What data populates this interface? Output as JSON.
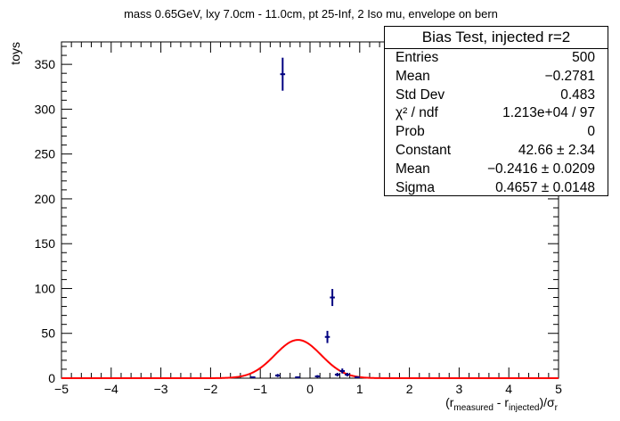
{
  "chart_data": {
    "type": "histogram",
    "title": "mass 0.65GeV, lxy 7.0cm - 11.0cm, pt 25-Inf, 2 Iso mu, envelope on bern",
    "ylabel": "toys",
    "xlabel": {
      "parts": [
        {
          "text": "(r",
          "sub": false
        },
        {
          "text": "measured",
          "sub": true
        },
        {
          "text": " - r",
          "sub": false
        },
        {
          "text": "injected",
          "sub": true
        },
        {
          "text": ")/σ",
          "sub": false
        },
        {
          "text": "r",
          "sub": true
        }
      ]
    },
    "xlim": [
      -5,
      5
    ],
    "ylim": [
      0,
      375
    ],
    "xticks": [
      -5,
      -4,
      -3,
      -2,
      -1,
      0,
      1,
      2,
      3,
      4,
      5
    ],
    "xtick_labels": [
      "−5",
      "−4",
      "−3",
      "−2",
      "−1",
      "0",
      "1",
      "2",
      "3",
      "4",
      "5"
    ],
    "yticks": [
      0,
      50,
      100,
      150,
      200,
      250,
      300,
      350
    ],
    "ytick_labels": [
      "0",
      "50",
      "100",
      "150",
      "200",
      "250",
      "300",
      "350"
    ],
    "bin_width": 0.1,
    "series": [
      {
        "kind": "data-points",
        "color": "#000080",
        "points": [
          {
            "x": -0.55,
            "y": 339,
            "err": 18.4
          },
          {
            "x": 0.35,
            "y": 46,
            "err": 6.8
          },
          {
            "x": 0.45,
            "y": 90,
            "err": 9.5
          },
          {
            "x": 0.65,
            "y": 8,
            "err": 2.8
          },
          {
            "x": -0.65,
            "y": 3,
            "err": 1.7
          },
          {
            "x": 0.15,
            "y": 2,
            "err": 1.4
          },
          {
            "x": 0.55,
            "y": 4,
            "err": 2.0
          },
          {
            "x": 0.75,
            "y": 4,
            "err": 2.0
          },
          {
            "x": -0.25,
            "y": 1,
            "err": 1.0
          },
          {
            "x": 0.95,
            "y": 1,
            "err": 1.0
          },
          {
            "x": -1.15,
            "y": 1,
            "err": 1.0
          }
        ]
      },
      {
        "kind": "gaussian-fit",
        "color": "#ff0000",
        "constant": 42.66,
        "mean": -0.2416,
        "sigma": 0.4657
      }
    ],
    "stats_box": {
      "title": "Bias Test, injected r=2",
      "rows": [
        {
          "label": "Entries",
          "value": "500"
        },
        {
          "label": "Mean",
          "value": "−0.2781"
        },
        {
          "label": "Std Dev",
          "value": "0.483"
        },
        {
          "label": "χ² / ndf",
          "value": "1.213e+04 / 97"
        },
        {
          "label": "Prob",
          "value": "0"
        },
        {
          "label": "Constant",
          "value": "42.66 ± 2.34"
        },
        {
          "label": "Mean",
          "value": "−0.2416 ± 0.0209"
        },
        {
          "label": "Sigma",
          "value": "0.4657 ± 0.0148"
        }
      ]
    }
  }
}
